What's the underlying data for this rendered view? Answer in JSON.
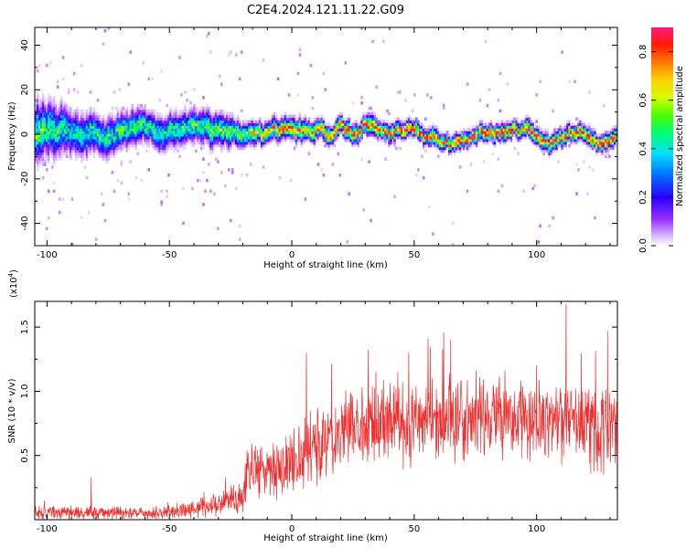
{
  "chart_data": [
    {
      "type": "heatmap",
      "title": "C2E4.2024.121.11.22.G09",
      "xlabel": "Height of straight line (km)",
      "ylabel": "Frequency (Hz)",
      "xlim": [
        -105,
        133
      ],
      "ylim": [
        -50,
        48
      ],
      "xticks": [
        -100,
        -50,
        0,
        50,
        100
      ],
      "yticks": [
        -40,
        -20,
        0,
        20,
        40
      ],
      "xticklabels": [
        "-100",
        "-50",
        "0",
        "50",
        "100"
      ],
      "yticklabels": [
        "-40",
        "-20",
        "0",
        "20",
        "40"
      ],
      "colorbar": {
        "label": "Normalized spectral amplitude",
        "range": [
          0.0,
          0.9
        ],
        "ticks": [
          0.0,
          0.2,
          0.4,
          0.6,
          0.8
        ],
        "ticklabels": [
          "0.0",
          "0.2",
          "0.4",
          "0.6",
          "0.8"
        ]
      },
      "band": {
        "x": [
          -105,
          -90,
          -75,
          -60,
          -45,
          -30,
          -15,
          0,
          15,
          30,
          45,
          60,
          75,
          90,
          105,
          120,
          133
        ],
        "center_hz": [
          1,
          1,
          1,
          1,
          1,
          2,
          1,
          1,
          -1,
          1,
          0,
          -1,
          -1,
          0,
          -1,
          -2,
          -2
        ],
        "halfwidth_hz": [
          11,
          8,
          7,
          6,
          6,
          6,
          4,
          4,
          3.5,
          3.5,
          3,
          3,
          3,
          3,
          3,
          3,
          3
        ],
        "peak_amplitude": [
          0.5,
          0.4,
          0.45,
          0.45,
          0.45,
          0.5,
          0.6,
          0.7,
          0.75,
          0.8,
          0.8,
          0.8,
          0.8,
          0.8,
          0.8,
          0.8,
          0.8
        ]
      }
    },
    {
      "type": "line",
      "xlabel": "Height of straight line (km)",
      "ylabel": "SNR (10 * v/v)",
      "multiplier": "(x10",
      "multiplier_exp": "4",
      "multiplier_close": ")",
      "color": "#ee3030",
      "xlim": [
        -105,
        133
      ],
      "ylim": [
        0,
        1.7
      ],
      "xticks": [
        -100,
        -50,
        0,
        50,
        100
      ],
      "yticks": [
        0.5,
        1.0,
        1.5
      ],
      "xticklabels": [
        "-100",
        "-50",
        "0",
        "50",
        "100"
      ],
      "yticklabels": [
        "0.5",
        "1.0",
        "1.5"
      ],
      "trend": {
        "x": [
          -105,
          -80,
          -60,
          -45,
          -30,
          -20,
          -18,
          -10,
          0,
          10,
          20,
          30,
          50,
          70,
          100,
          133
        ],
        "mean": [
          0.05,
          0.06,
          0.05,
          0.07,
          0.11,
          0.18,
          0.38,
          0.4,
          0.45,
          0.55,
          0.68,
          0.75,
          0.76,
          0.78,
          0.77,
          0.73
        ],
        "spread": [
          0.05,
          0.06,
          0.04,
          0.06,
          0.1,
          0.12,
          0.2,
          0.22,
          0.25,
          0.28,
          0.3,
          0.3,
          0.32,
          0.32,
          0.33,
          0.35
        ]
      },
      "peaks": [
        {
          "x": -82,
          "y": 0.33
        },
        {
          "x": 6,
          "y": 1.3
        },
        {
          "x": 62,
          "y": 1.46
        },
        {
          "x": 112,
          "y": 1.68
        },
        {
          "x": 129,
          "y": 1.47
        }
      ]
    }
  ]
}
